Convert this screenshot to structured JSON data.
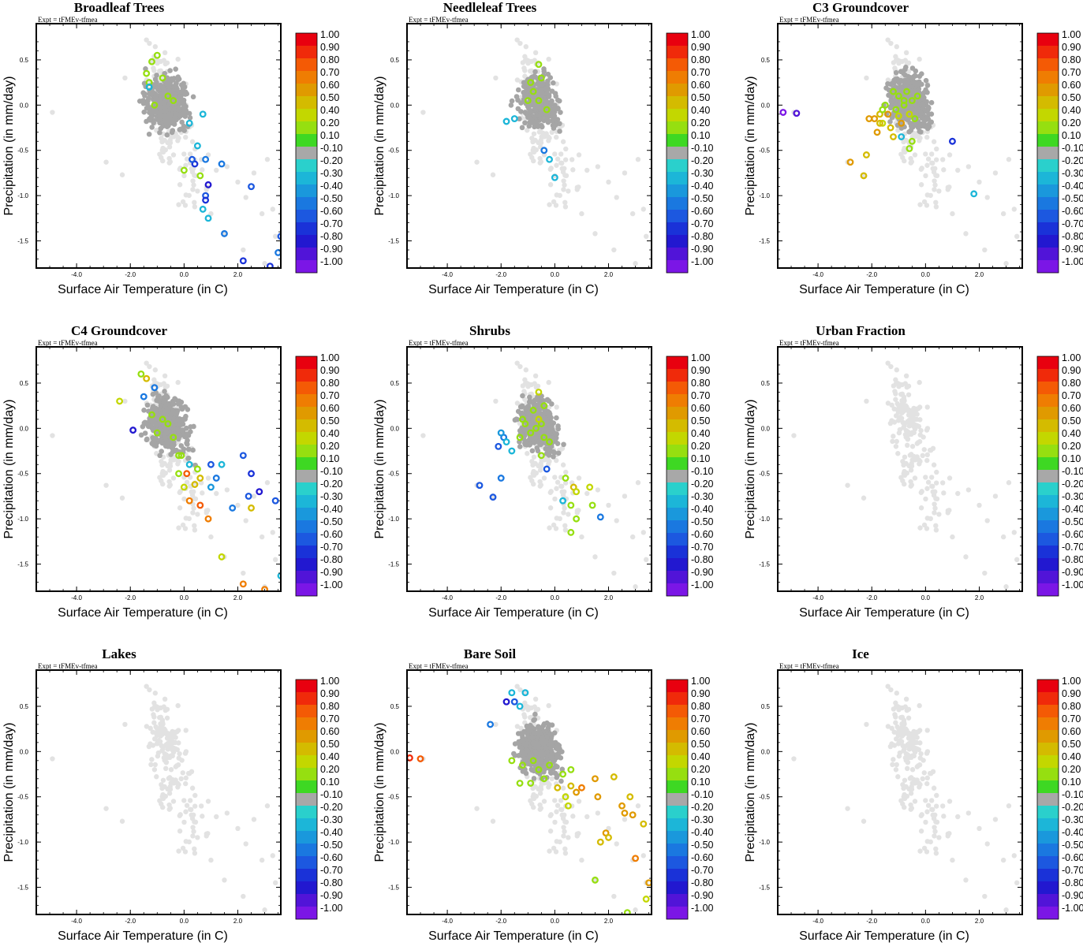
{
  "chart_data": {
    "type": "scatter",
    "layout": "3x3 grid of scatter panels",
    "expt_label": "Expt = tFMEv-tfmea",
    "xlabel": "Surface Air Temperature (in C)",
    "ylabel": "Precipitation (in mm/day)",
    "xlim": [
      -5.5,
      3.6
    ],
    "ylim": [
      -1.8,
      0.9
    ],
    "xticks": [
      "-4.0",
      "-2.0",
      "0.0",
      "2.0"
    ],
    "yticks": [
      "0.5",
      "0.0",
      "-0.5",
      "-1.0",
      "-1.5"
    ],
    "colorbar": {
      "labels": [
        "1.00",
        "0.90",
        "0.80",
        "0.70",
        "0.60",
        "0.50",
        "0.40",
        "0.20",
        "0.10",
        "-0.10",
        "-0.20",
        "-0.30",
        "-0.40",
        "-0.50",
        "-0.60",
        "-0.70",
        "-0.80",
        "-0.90",
        "-1.00"
      ],
      "colors": [
        "#e8000f",
        "#f02a0a",
        "#f45a05",
        "#ef7d02",
        "#e09a00",
        "#d4bb00",
        "#c3d700",
        "#96df10",
        "#3ed823",
        "#a8a8a8",
        "#2ad0cc",
        "#1cb6d8",
        "#1a98dc",
        "#1a78e0",
        "#1c58e0",
        "#1a32d8",
        "#2218d0",
        "#5114d8",
        "#7b16e6"
      ]
    },
    "neutral_colors": {
      "gray": "#a5a5a5",
      "light": "#e2e2e2"
    },
    "background_cloud": [
      [
        -0.6,
        0.1,
        90
      ],
      [
        -0.9,
        0.4,
        30
      ],
      [
        -0.3,
        -0.3,
        30
      ],
      [
        -0.5,
        -0.5,
        20
      ],
      [
        0.3,
        -0.7,
        15
      ],
      [
        0.5,
        -1.0,
        12
      ]
    ],
    "outlier_points": [
      [
        -4.9,
        -0.08
      ],
      [
        -2.9,
        -0.63
      ],
      [
        -2.3,
        -0.77
      ],
      [
        -2.2,
        0.3
      ],
      [
        -1.4,
        0.72
      ],
      [
        0.9,
        -0.55
      ],
      [
        1.2,
        -0.72
      ],
      [
        1.6,
        -0.68
      ],
      [
        2.0,
        -0.85
      ],
      [
        2.3,
        -1.02
      ],
      [
        2.6,
        -0.75
      ],
      [
        2.9,
        -1.2
      ],
      [
        3.1,
        -0.6
      ],
      [
        3.3,
        -1.15
      ],
      [
        3.4,
        -1.45
      ],
      [
        1.5,
        -1.42
      ],
      [
        2.2,
        -1.6
      ],
      [
        3.0,
        -1.75
      ],
      [
        0.5,
        -0.95
      ],
      [
        1.0,
        -1.2
      ],
      [
        -1.1,
        -0.2
      ],
      [
        -0.2,
        -1.1
      ]
    ],
    "panels": [
      {
        "title": "Broadleaf Trees",
        "gray_count": 420,
        "points": [
          [
            -1.2,
            0.48,
            0.3
          ],
          [
            -1.0,
            0.55,
            0.3
          ],
          [
            -1.4,
            0.35,
            0.2
          ],
          [
            -1.3,
            0.25,
            0.2
          ],
          [
            -0.8,
            0.3,
            0.3
          ],
          [
            -0.6,
            0.1,
            0.2
          ],
          [
            -0.4,
            0.05,
            0.3
          ],
          [
            -1.1,
            0.0,
            0.2
          ],
          [
            -1.3,
            0.2,
            -0.3
          ],
          [
            0.2,
            -0.2,
            -0.3
          ],
          [
            0.7,
            -0.1,
            -0.3
          ],
          [
            0.5,
            -0.45,
            -0.3
          ],
          [
            0.8,
            -0.6,
            -0.5
          ],
          [
            0.4,
            -0.65,
            -0.7
          ],
          [
            0.6,
            -0.78,
            0.2
          ],
          [
            0.9,
            -0.88,
            -0.8
          ],
          [
            0.8,
            -1.0,
            -0.6
          ],
          [
            0.8,
            -1.05,
            -0.7
          ],
          [
            0.7,
            -1.15,
            -0.3
          ],
          [
            0.9,
            -1.25,
            -0.3
          ],
          [
            1.4,
            -0.65,
            -0.5
          ],
          [
            2.5,
            -0.9,
            -0.6
          ],
          [
            1.5,
            -1.42,
            -0.5
          ],
          [
            2.2,
            -1.72,
            -0.7
          ],
          [
            3.2,
            -1.78,
            -0.7
          ],
          [
            3.6,
            -1.45,
            -0.6
          ],
          [
            3.5,
            -1.63,
            -0.5
          ],
          [
            0.3,
            -0.6,
            -0.6
          ],
          [
            0.0,
            -0.72,
            0.3
          ]
        ]
      },
      {
        "title": "Needleleaf Trees",
        "gray_count": 300,
        "points": [
          [
            -0.6,
            0.45,
            0.2
          ],
          [
            -0.9,
            0.25,
            0.3
          ],
          [
            -0.5,
            0.3,
            0.2
          ],
          [
            -1.0,
            0.05,
            0.2
          ],
          [
            -0.6,
            0.05,
            0.3
          ],
          [
            -0.3,
            -0.05,
            0.2
          ],
          [
            -0.8,
            0.15,
            0.2
          ],
          [
            -1.5,
            -0.15,
            -0.3
          ],
          [
            -1.8,
            -0.18,
            -0.3
          ],
          [
            -0.4,
            -0.5,
            -0.5
          ],
          [
            0.0,
            -0.8,
            -0.3
          ],
          [
            -0.2,
            -0.6,
            -0.3
          ]
        ]
      },
      {
        "title": "C3 Groundcover",
        "gray_count": 430,
        "points": [
          [
            -5.3,
            -0.08,
            -1.0
          ],
          [
            -4.8,
            -0.09,
            -0.9
          ],
          [
            -2.8,
            -0.63,
            0.6
          ],
          [
            -2.3,
            -0.78,
            0.5
          ],
          [
            -2.2,
            -0.55,
            0.5
          ],
          [
            -1.8,
            -0.3,
            0.6
          ],
          [
            -1.9,
            -0.15,
            0.6
          ],
          [
            -2.1,
            -0.15,
            0.6
          ],
          [
            -1.7,
            -0.1,
            0.5
          ],
          [
            -1.6,
            -0.2,
            0.4
          ],
          [
            -1.4,
            -0.1,
            0.6
          ],
          [
            -1.5,
            0.0,
            0.2
          ],
          [
            -1.3,
            -0.25,
            0.5
          ],
          [
            -1.1,
            -0.05,
            0.3
          ],
          [
            -1.0,
            0.1,
            0.2
          ],
          [
            -0.9,
            -0.2,
            0.6
          ],
          [
            -0.8,
            0.0,
            0.2
          ],
          [
            -0.6,
            -0.1,
            0.4
          ],
          [
            -0.5,
            0.05,
            0.2
          ],
          [
            -0.3,
            0.1,
            0.2
          ],
          [
            -0.4,
            -0.15,
            0.3
          ],
          [
            -1.2,
            -0.35,
            0.5
          ],
          [
            -1.2,
            0.15,
            0.2
          ],
          [
            -0.7,
            0.15,
            0.2
          ],
          [
            -0.9,
            -0.35,
            -0.3
          ],
          [
            -0.5,
            -0.4,
            0.2
          ],
          [
            -0.6,
            -0.48,
            0.2
          ],
          [
            1.0,
            -0.4,
            -0.7
          ],
          [
            1.8,
            -0.98,
            -0.3
          ],
          [
            -1.6,
            -0.05,
            0.3
          ],
          [
            -1.7,
            -0.2,
            0.5
          ],
          [
            -1.0,
            -0.12,
            0.4
          ],
          [
            -0.8,
            0.05,
            0.3
          ]
        ]
      },
      {
        "title": "C4 Groundcover",
        "gray_count": 420,
        "points": [
          [
            -1.6,
            0.6,
            0.2
          ],
          [
            -1.4,
            0.55,
            0.5
          ],
          [
            -2.4,
            0.3,
            0.4
          ],
          [
            -1.1,
            0.45,
            -0.5
          ],
          [
            -1.5,
            0.35,
            -0.5
          ],
          [
            -1.2,
            0.15,
            0.2
          ],
          [
            -0.8,
            0.1,
            0.2
          ],
          [
            -0.6,
            0.05,
            0.3
          ],
          [
            -1.0,
            -0.05,
            0.2
          ],
          [
            -0.4,
            -0.1,
            0.2
          ],
          [
            -1.9,
            -0.02,
            -0.8
          ],
          [
            -0.1,
            -0.3,
            0.2
          ],
          [
            0.2,
            -0.4,
            -0.3
          ],
          [
            1.0,
            -0.4,
            -0.6
          ],
          [
            1.4,
            -0.4,
            -0.3
          ],
          [
            0.5,
            -0.45,
            0.2
          ],
          [
            0.6,
            -0.55,
            0.5
          ],
          [
            0.1,
            -0.5,
            0.8
          ],
          [
            0.4,
            -0.62,
            0.5
          ],
          [
            -0.2,
            -0.5,
            0.2
          ],
          [
            0.0,
            -0.65,
            0.4
          ],
          [
            0.2,
            -0.8,
            0.7
          ],
          [
            0.6,
            -0.85,
            0.8
          ],
          [
            0.9,
            -1.0,
            0.7
          ],
          [
            1.0,
            -0.65,
            -0.4
          ],
          [
            2.2,
            -0.3,
            -0.6
          ],
          [
            2.5,
            -0.5,
            -0.7
          ],
          [
            2.8,
            -0.7,
            -0.8
          ],
          [
            2.4,
            -0.75,
            -0.6
          ],
          [
            3.4,
            -0.8,
            -0.6
          ],
          [
            1.4,
            -1.42,
            0.4
          ],
          [
            2.2,
            -1.72,
            0.7
          ],
          [
            3.0,
            -1.78,
            0.7
          ],
          [
            3.6,
            -1.63,
            -0.3
          ],
          [
            1.8,
            -0.88,
            -0.5
          ],
          [
            2.5,
            -0.88,
            0.5
          ],
          [
            -0.2,
            -0.3,
            0.3
          ],
          [
            1.2,
            -0.55,
            -0.5
          ]
        ]
      },
      {
        "title": "Shrubs",
        "gray_count": 380,
        "points": [
          [
            -0.6,
            0.4,
            0.4
          ],
          [
            -0.8,
            0.2,
            0.3
          ],
          [
            -0.4,
            0.25,
            0.2
          ],
          [
            -1.1,
            0.05,
            0.2
          ],
          [
            -0.9,
            -0.05,
            0.3
          ],
          [
            -0.7,
            0.0,
            0.2
          ],
          [
            -0.5,
            0.05,
            0.2
          ],
          [
            -0.4,
            -0.1,
            0.3
          ],
          [
            -1.3,
            -0.1,
            0.2
          ],
          [
            -0.2,
            -0.15,
            0.2
          ],
          [
            -0.6,
            0.1,
            0.4
          ],
          [
            -1.2,
            0.1,
            0.2
          ],
          [
            -1.9,
            -0.1,
            -0.5
          ],
          [
            -2.0,
            -0.05,
            -0.4
          ],
          [
            -1.8,
            -0.15,
            -0.3
          ],
          [
            -2.1,
            -0.2,
            -0.6
          ],
          [
            -1.6,
            -0.25,
            -0.3
          ],
          [
            -2.0,
            -0.55,
            -0.5
          ],
          [
            -2.3,
            -0.76,
            -0.6
          ],
          [
            -2.8,
            -0.63,
            -0.6
          ],
          [
            -0.3,
            -0.45,
            -0.6
          ],
          [
            0.4,
            -0.55,
            0.3
          ],
          [
            0.7,
            -0.65,
            0.5
          ],
          [
            0.8,
            -0.7,
            0.4
          ],
          [
            0.3,
            -0.8,
            -0.3
          ],
          [
            0.6,
            -0.85,
            0.2
          ],
          [
            1.3,
            -0.65,
            0.4
          ],
          [
            1.4,
            -0.85,
            0.3
          ],
          [
            1.7,
            -0.98,
            -0.5
          ],
          [
            0.8,
            -1.0,
            0.2
          ],
          [
            0.6,
            -1.15,
            0.2
          ],
          [
            -0.5,
            -0.3,
            0.2
          ]
        ]
      },
      {
        "title": "Urban Fraction",
        "gray_count": 0,
        "points": []
      },
      {
        "title": "Lakes",
        "gray_count": 0,
        "points": []
      },
      {
        "title": "Bare Soil",
        "gray_count": 420,
        "points": [
          [
            -5.4,
            -0.07,
            0.9
          ],
          [
            -5.0,
            -0.08,
            0.8
          ],
          [
            -2.4,
            0.3,
            -0.5
          ],
          [
            -1.8,
            0.55,
            -0.8
          ],
          [
            -1.5,
            0.55,
            -0.6
          ],
          [
            -1.3,
            0.5,
            -0.3
          ],
          [
            -1.6,
            0.65,
            -0.3
          ],
          [
            -1.1,
            0.65,
            -0.3
          ],
          [
            -1.6,
            -0.1,
            0.2
          ],
          [
            -1.2,
            -0.15,
            0.2
          ],
          [
            -0.8,
            -0.1,
            0.2
          ],
          [
            -0.6,
            -0.2,
            0.2
          ],
          [
            -1.3,
            -0.35,
            0.2
          ],
          [
            -0.4,
            -0.3,
            0.2
          ],
          [
            -0.2,
            -0.15,
            0.2
          ],
          [
            0.3,
            -0.25,
            0.3
          ],
          [
            0.1,
            -0.4,
            0.5
          ],
          [
            0.4,
            -0.5,
            0.4
          ],
          [
            0.8,
            -0.45,
            0.6
          ],
          [
            0.6,
            -0.38,
            0.5
          ],
          [
            0.5,
            -0.6,
            0.4
          ],
          [
            1.0,
            -0.4,
            0.7
          ],
          [
            1.5,
            -0.3,
            0.6
          ],
          [
            1.6,
            -0.5,
            0.6
          ],
          [
            2.2,
            -0.28,
            0.5
          ],
          [
            2.5,
            -0.6,
            0.6
          ],
          [
            2.8,
            -0.5,
            0.5
          ],
          [
            2.9,
            -0.7,
            0.6
          ],
          [
            2.6,
            -0.68,
            0.6
          ],
          [
            1.9,
            -0.9,
            0.6
          ],
          [
            3.3,
            -0.8,
            0.5
          ],
          [
            3.0,
            -1.18,
            0.7
          ],
          [
            3.5,
            -1.45,
            0.6
          ],
          [
            2.0,
            -0.95,
            0.5
          ],
          [
            1.7,
            -1.0,
            0.5
          ],
          [
            1.5,
            -1.42,
            0.2
          ],
          [
            2.7,
            -1.78,
            0.2
          ],
          [
            3.4,
            -1.63,
            0.4
          ],
          [
            0.6,
            -0.2,
            0.2
          ],
          [
            -0.9,
            -0.35,
            0.3
          ]
        ]
      },
      {
        "title": "Ice",
        "gray_count": 0,
        "points": []
      }
    ]
  }
}
